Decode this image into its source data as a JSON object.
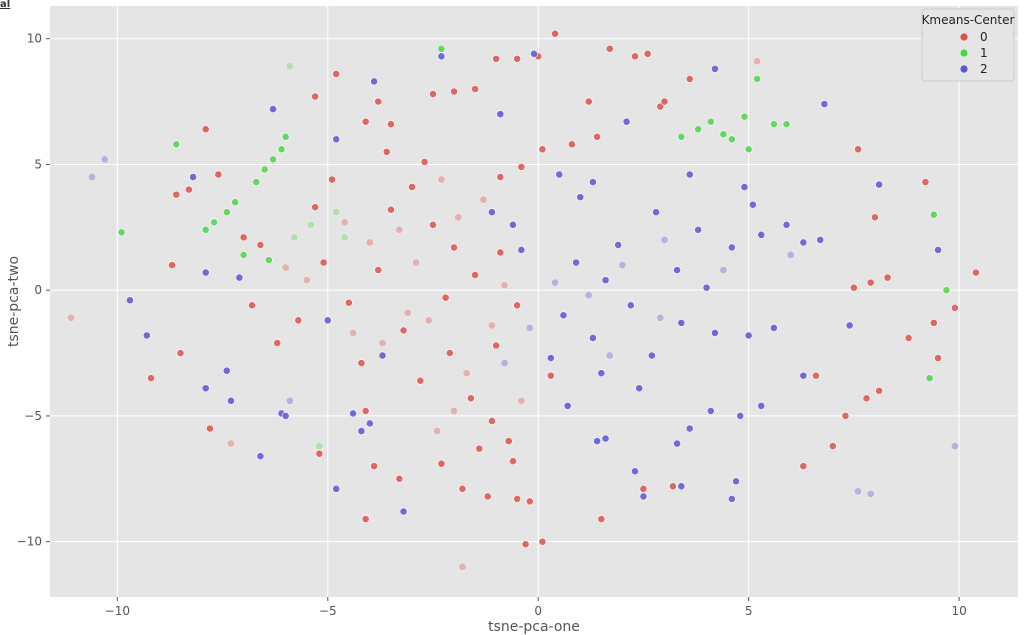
{
  "page": {
    "corner_mark": "al"
  },
  "chart_data": {
    "type": "scatter",
    "title": "",
    "xlabel": "tsne-pca-one",
    "ylabel": "tsne-pca-two",
    "xlim": [
      -11.6,
      11.4
    ],
    "ylim": [
      -12.2,
      11.3
    ],
    "x_ticks": [
      -10,
      -5,
      0,
      5,
      10
    ],
    "y_ticks": [
      -10,
      -5,
      0,
      5,
      10
    ],
    "x_tick_labels": [
      "−10",
      "−5",
      "0",
      "5",
      "10"
    ],
    "y_tick_labels": [
      "−10",
      "−5",
      "0",
      "5",
      "10"
    ],
    "grid": true,
    "background": "#e5e5e5",
    "grid_color": "#ffffff",
    "legend": {
      "title": "Kmeans-Center",
      "placement": "top-right",
      "entries": [
        {
          "label": "0",
          "color": "#d9534a"
        },
        {
          "label": "1",
          "color": "#4cd34c"
        },
        {
          "label": "2",
          "color": "#5a55d6"
        }
      ]
    },
    "series": [
      {
        "name": "0",
        "color": "#d9534a",
        "points": [
          [
            -3.5,
            3.2
          ],
          [
            -3.0,
            4.1
          ],
          [
            -2.5,
            2.6
          ],
          [
            -2.0,
            1.7
          ],
          [
            -3.8,
            0.8
          ],
          [
            -4.5,
            -0.5
          ],
          [
            -3.2,
            -1.6
          ],
          [
            -2.1,
            -2.5
          ],
          [
            -4.2,
            -2.9
          ],
          [
            -1.6,
            -4.3
          ],
          [
            -1.1,
            -5.2
          ],
          [
            -0.7,
            -6.0
          ],
          [
            -1.4,
            -6.3
          ],
          [
            -2.8,
            -3.6
          ],
          [
            -5.1,
            1.1
          ],
          [
            -5.7,
            -1.2
          ],
          [
            -6.2,
            -2.1
          ],
          [
            -6.8,
            -0.6
          ],
          [
            -5.3,
            3.3
          ],
          [
            -4.9,
            4.4
          ],
          [
            -2.2,
            -0.3
          ],
          [
            -1.5,
            0.6
          ],
          [
            -0.9,
            1.5
          ],
          [
            -0.5,
            -0.6
          ],
          [
            -1.0,
            -2.2
          ],
          [
            -3.6,
            5.5
          ],
          [
            -2.7,
            5.1
          ],
          [
            -4.1,
            -4.8
          ],
          [
            0.1,
            5.6
          ],
          [
            0.8,
            5.8
          ],
          [
            1.4,
            6.1
          ],
          [
            -0.4,
            4.9
          ],
          [
            -0.9,
            4.5
          ],
          [
            -1.5,
            8.0
          ],
          [
            -2.0,
            7.9
          ],
          [
            -2.5,
            7.8
          ],
          [
            -0.5,
            9.2
          ],
          [
            0.0,
            9.3
          ],
          [
            -1.0,
            9.2
          ],
          [
            0.4,
            10.2
          ],
          [
            1.7,
            9.6
          ],
          [
            2.3,
            9.3
          ],
          [
            2.6,
            9.4
          ],
          [
            -4.8,
            8.6
          ],
          [
            -5.3,
            7.7
          ],
          [
            -3.5,
            6.6
          ],
          [
            -3.8,
            7.5
          ],
          [
            -4.1,
            6.7
          ],
          [
            -7.9,
            6.4
          ],
          [
            -8.6,
            3.8
          ],
          [
            -8.3,
            4.0
          ],
          [
            -7.6,
            4.6
          ],
          [
            -8.7,
            1.0
          ],
          [
            -9.2,
            -3.5
          ],
          [
            -8.5,
            -2.5
          ],
          [
            -7.8,
            -5.5
          ],
          [
            -7.0,
            2.1
          ],
          [
            -6.6,
            1.8
          ],
          [
            -5.2,
            -6.5
          ],
          [
            -4.1,
            -9.1
          ],
          [
            -1.2,
            -8.2
          ],
          [
            -0.5,
            -8.3
          ],
          [
            -0.2,
            -8.4
          ],
          [
            -0.3,
            -10.1
          ],
          [
            0.1,
            -10.0
          ],
          [
            1.5,
            -9.1
          ],
          [
            2.5,
            -7.9
          ],
          [
            3.2,
            -7.8
          ],
          [
            3.6,
            8.4
          ],
          [
            2.9,
            7.3
          ],
          [
            3.0,
            7.5
          ],
          [
            1.2,
            7.5
          ],
          [
            6.3,
            -7.0
          ],
          [
            6.6,
            -3.4
          ],
          [
            7.0,
            -6.2
          ],
          [
            7.3,
            -5.0
          ],
          [
            7.8,
            -4.3
          ],
          [
            8.1,
            -4.0
          ],
          [
            7.5,
            0.1
          ],
          [
            7.9,
            0.3
          ],
          [
            8.3,
            0.5
          ],
          [
            7.6,
            5.6
          ],
          [
            8.0,
            2.9
          ],
          [
            8.8,
            -1.9
          ],
          [
            9.2,
            4.3
          ],
          [
            9.4,
            -1.3
          ],
          [
            9.5,
            -2.7
          ],
          [
            9.9,
            -0.7
          ],
          [
            10.4,
            0.7
          ],
          [
            0.3,
            -3.4
          ],
          [
            -1.8,
            -7.9
          ],
          [
            -0.6,
            -6.8
          ],
          [
            -2.3,
            -6.9
          ],
          [
            -3.3,
            -7.5
          ],
          [
            -3.9,
            -7.0
          ]
        ],
        "faded_points": [
          [
            -3.3,
            2.4
          ],
          [
            -2.9,
            1.1
          ],
          [
            -4.0,
            1.9
          ],
          [
            -2.6,
            -1.2
          ],
          [
            -3.7,
            -2.1
          ],
          [
            -1.9,
            2.9
          ],
          [
            -2.3,
            4.4
          ],
          [
            -4.6,
            2.7
          ],
          [
            -5.5,
            0.4
          ],
          [
            -1.1,
            -1.4
          ],
          [
            -1.7,
            -3.3
          ],
          [
            -2.4,
            -5.6
          ],
          [
            -3.1,
            -0.9
          ],
          [
            -1.3,
            3.6
          ],
          [
            -0.8,
            0.2
          ],
          [
            -4.4,
            -1.7
          ],
          [
            -6.0,
            0.9
          ],
          [
            -2.0,
            -4.8
          ],
          [
            -0.4,
            -4.4
          ],
          [
            5.2,
            9.1
          ],
          [
            -11.1,
            -1.1
          ],
          [
            -1.8,
            -11.0
          ],
          [
            -7.3,
            -6.1
          ]
        ]
      },
      {
        "name": "1",
        "color": "#4cd34c",
        "points": [
          [
            -2.3,
            9.6
          ],
          [
            -6.0,
            6.1
          ],
          [
            -6.1,
            5.6
          ],
          [
            -6.3,
            5.2
          ],
          [
            -6.5,
            4.8
          ],
          [
            -6.7,
            4.3
          ],
          [
            -7.2,
            3.5
          ],
          [
            -7.4,
            3.1
          ],
          [
            -7.7,
            2.7
          ],
          [
            -7.9,
            2.4
          ],
          [
            -8.6,
            5.8
          ],
          [
            -9.9,
            2.3
          ],
          [
            -7.0,
            1.4
          ],
          [
            -6.4,
            1.2
          ],
          [
            3.4,
            6.1
          ],
          [
            3.8,
            6.4
          ],
          [
            4.1,
            6.7
          ],
          [
            4.6,
            6.0
          ],
          [
            5.0,
            5.6
          ],
          [
            4.9,
            6.9
          ],
          [
            4.4,
            6.2
          ],
          [
            5.6,
            6.6
          ],
          [
            5.9,
            6.6
          ],
          [
            5.2,
            8.4
          ],
          [
            9.4,
            3.0
          ],
          [
            9.7,
            0.0
          ],
          [
            9.3,
            -3.5
          ]
        ],
        "faded_points": [
          [
            -5.8,
            2.1
          ],
          [
            -5.4,
            2.6
          ],
          [
            -4.8,
            3.1
          ],
          [
            -5.9,
            8.9
          ],
          [
            -5.2,
            -6.2
          ],
          [
            -4.6,
            2.1
          ]
        ]
      },
      {
        "name": "2",
        "color": "#5a55d6",
        "points": [
          [
            0.9,
            1.1
          ],
          [
            1.6,
            0.4
          ],
          [
            2.2,
            -0.6
          ],
          [
            1.3,
            -1.9
          ],
          [
            2.7,
            -2.6
          ],
          [
            0.6,
            -1.0
          ],
          [
            1.9,
            1.8
          ],
          [
            3.3,
            0.8
          ],
          [
            3.8,
            2.4
          ],
          [
            4.6,
            1.7
          ],
          [
            5.3,
            2.2
          ],
          [
            5.9,
            2.6
          ],
          [
            6.3,
            1.9
          ],
          [
            6.7,
            2.0
          ],
          [
            5.1,
            3.4
          ],
          [
            4.0,
            0.1
          ],
          [
            3.4,
            -1.3
          ],
          [
            4.2,
            -1.7
          ],
          [
            5.0,
            -1.8
          ],
          [
            5.6,
            -1.5
          ],
          [
            4.1,
            -4.8
          ],
          [
            4.8,
            -5.0
          ],
          [
            5.3,
            -4.6
          ],
          [
            3.6,
            -5.5
          ],
          [
            3.3,
            -6.1
          ],
          [
            2.4,
            -3.9
          ],
          [
            1.5,
            -3.3
          ],
          [
            2.8,
            3.1
          ],
          [
            1.0,
            3.7
          ],
          [
            -1.1,
            3.1
          ],
          [
            -0.6,
            2.6
          ],
          [
            -0.4,
            1.6
          ],
          [
            -4.2,
            -5.6
          ],
          [
            -4.0,
            -5.3
          ],
          [
            -4.4,
            -4.9
          ],
          [
            -3.7,
            -2.6
          ],
          [
            -5.0,
            -1.2
          ],
          [
            0.7,
            -4.6
          ],
          [
            0.3,
            -2.7
          ],
          [
            1.4,
            -6.0
          ],
          [
            1.6,
            -5.9
          ],
          [
            2.3,
            -7.2
          ],
          [
            4.7,
            -7.6
          ],
          [
            3.4,
            -7.8
          ],
          [
            4.6,
            -8.3
          ],
          [
            2.5,
            -8.2
          ],
          [
            -3.2,
            -8.8
          ],
          [
            -4.8,
            -7.9
          ],
          [
            -6.6,
            -6.6
          ],
          [
            -7.3,
            -4.4
          ],
          [
            -7.4,
            -3.2
          ],
          [
            -7.9,
            -3.9
          ],
          [
            -9.3,
            -1.8
          ],
          [
            -9.7,
            -0.4
          ],
          [
            -7.9,
            0.7
          ],
          [
            -7.1,
            0.5
          ],
          [
            -6.3,
            7.2
          ],
          [
            -8.2,
            4.5
          ],
          [
            -0.9,
            7.0
          ],
          [
            -2.3,
            9.3
          ],
          [
            -0.1,
            9.4
          ],
          [
            -4.8,
            6.0
          ],
          [
            -3.9,
            8.3
          ],
          [
            4.2,
            8.8
          ],
          [
            6.8,
            7.4
          ],
          [
            8.1,
            4.2
          ],
          [
            7.4,
            -1.4
          ],
          [
            9.5,
            1.6
          ],
          [
            6.3,
            -3.4
          ],
          [
            -6.1,
            -4.9
          ],
          [
            -6.0,
            -5.0
          ],
          [
            2.1,
            6.7
          ],
          [
            1.3,
            4.3
          ],
          [
            0.5,
            4.6
          ],
          [
            3.6,
            4.6
          ],
          [
            4.9,
            4.1
          ]
        ],
        "faded_points": [
          [
            1.2,
            -0.2
          ],
          [
            2.0,
            1.0
          ],
          [
            0.4,
            0.3
          ],
          [
            2.9,
            -1.1
          ],
          [
            3.0,
            2.0
          ],
          [
            1.7,
            -2.6
          ],
          [
            4.4,
            0.8
          ],
          [
            6.0,
            1.4
          ],
          [
            -0.2,
            -1.5
          ],
          [
            -0.8,
            -2.9
          ],
          [
            -10.3,
            5.2
          ],
          [
            -10.6,
            4.5
          ],
          [
            9.9,
            -6.2
          ],
          [
            7.9,
            -8.1
          ],
          [
            7.6,
            -8.0
          ],
          [
            -5.9,
            -4.4
          ]
        ]
      }
    ]
  }
}
